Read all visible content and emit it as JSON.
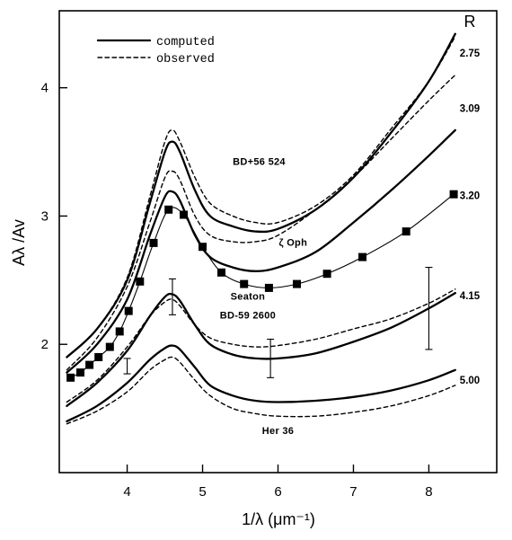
{
  "chart_data": {
    "type": "line",
    "title": "",
    "xlabel": "1/λ (μm⁻¹)",
    "ylabel": "Aλ /Av",
    "xlim": [
      3.1,
      8.9
    ],
    "ylim": [
      1.0,
      4.6
    ],
    "xticks": [
      4,
      5,
      6,
      7,
      8
    ],
    "yticks": [
      2,
      3,
      4
    ],
    "grid": false,
    "legend": {
      "position": "top-left",
      "entries": [
        {
          "label": "computed",
          "style": "solid"
        },
        {
          "label": "observed",
          "style": "dashed"
        }
      ]
    },
    "r_header": "R",
    "series": [
      {
        "R": "2.75",
        "style": "solid",
        "x": [
          3.2,
          3.6,
          4.0,
          4.3,
          4.5,
          4.6,
          4.7,
          4.9,
          5.1,
          5.4,
          5.7,
          6.0,
          6.5,
          7.0,
          7.5,
          8.0,
          8.35
        ],
        "y": [
          1.9,
          2.12,
          2.5,
          3.1,
          3.5,
          3.58,
          3.5,
          3.2,
          3.0,
          2.92,
          2.88,
          2.9,
          3.05,
          3.3,
          3.65,
          4.05,
          4.42
        ]
      },
      {
        "R": "2.75",
        "style": "dashed",
        "x": [
          3.2,
          3.6,
          4.0,
          4.3,
          4.5,
          4.6,
          4.7,
          4.9,
          5.1,
          5.4,
          5.7,
          6.0,
          6.5,
          7.0,
          7.5,
          8.0,
          8.35
        ],
        "y": [
          1.9,
          2.12,
          2.52,
          3.15,
          3.58,
          3.67,
          3.58,
          3.3,
          3.1,
          3.0,
          2.95,
          2.95,
          3.08,
          3.32,
          3.68,
          4.05,
          4.4
        ]
      },
      {
        "R": "3.09",
        "style": "solid",
        "x": [
          3.2,
          3.6,
          4.0,
          4.3,
          4.5,
          4.6,
          4.7,
          4.9,
          5.1,
          5.4,
          5.7,
          6.0,
          6.5,
          7.0,
          7.5,
          8.0,
          8.35
        ],
        "y": [
          1.78,
          2.0,
          2.35,
          2.85,
          3.15,
          3.19,
          3.12,
          2.85,
          2.68,
          2.6,
          2.57,
          2.6,
          2.72,
          2.95,
          3.2,
          3.47,
          3.67
        ]
      },
      {
        "R": "3.09",
        "style": "dashed",
        "x": [
          3.2,
          3.6,
          4.0,
          4.3,
          4.5,
          4.6,
          4.7,
          4.9,
          5.1,
          5.4,
          5.7,
          6.0,
          6.5,
          7.0,
          7.5,
          8.0,
          8.35
        ],
        "y": [
          1.8,
          2.05,
          2.45,
          2.95,
          3.3,
          3.35,
          3.28,
          3.0,
          2.85,
          2.8,
          2.8,
          2.85,
          3.05,
          3.3,
          3.6,
          3.9,
          4.1
        ]
      },
      {
        "R": "4.15",
        "style": "solid",
        "x": [
          3.2,
          3.6,
          4.0,
          4.3,
          4.5,
          4.6,
          4.7,
          4.9,
          5.1,
          5.4,
          5.7,
          6.0,
          6.5,
          7.0,
          7.5,
          8.0,
          8.35
        ],
        "y": [
          1.52,
          1.7,
          1.95,
          2.22,
          2.37,
          2.39,
          2.34,
          2.15,
          2.0,
          1.92,
          1.89,
          1.89,
          1.93,
          2.02,
          2.13,
          2.28,
          2.4
        ]
      },
      {
        "R": "4.15",
        "style": "dashed",
        "x": [
          3.2,
          3.6,
          4.0,
          4.3,
          4.5,
          4.6,
          4.7,
          4.9,
          5.1,
          5.4,
          5.7,
          6.0,
          6.5,
          7.0,
          7.5,
          8.0,
          8.35
        ],
        "y": [
          1.55,
          1.72,
          1.98,
          2.22,
          2.33,
          2.35,
          2.3,
          2.15,
          2.05,
          2.0,
          1.98,
          1.99,
          2.04,
          2.12,
          2.2,
          2.32,
          2.43
        ]
      },
      {
        "R": "5.00",
        "style": "solid",
        "x": [
          3.2,
          3.6,
          4.0,
          4.3,
          4.5,
          4.6,
          4.7,
          4.9,
          5.1,
          5.4,
          5.7,
          6.0,
          6.5,
          7.0,
          7.5,
          8.0,
          8.35
        ],
        "y": [
          1.4,
          1.52,
          1.7,
          1.88,
          1.97,
          1.99,
          1.96,
          1.82,
          1.68,
          1.6,
          1.56,
          1.55,
          1.56,
          1.59,
          1.64,
          1.72,
          1.8
        ]
      },
      {
        "R": "5.00",
        "style": "dashed",
        "x": [
          3.2,
          3.6,
          4.0,
          4.3,
          4.5,
          4.6,
          4.7,
          4.9,
          5.1,
          5.4,
          5.7,
          6.0,
          6.5,
          7.0,
          7.5,
          8.0,
          8.35
        ],
        "y": [
          1.38,
          1.48,
          1.63,
          1.8,
          1.88,
          1.9,
          1.86,
          1.72,
          1.6,
          1.5,
          1.46,
          1.44,
          1.44,
          1.47,
          1.52,
          1.6,
          1.68
        ]
      }
    ],
    "seaton": {
      "label": "Seaton",
      "x": [
        3.25,
        3.38,
        3.5,
        3.62,
        3.77,
        3.9,
        4.02,
        4.17,
        4.35,
        4.55,
        4.75,
        5.0,
        5.25,
        5.55,
        5.88,
        6.25,
        6.65,
        7.12,
        7.7,
        8.33
      ],
      "y": [
        1.74,
        1.78,
        1.84,
        1.9,
        1.98,
        2.1,
        2.26,
        2.49,
        2.79,
        3.05,
        3.01,
        2.76,
        2.56,
        2.47,
        2.44,
        2.47,
        2.55,
        2.68,
        2.88,
        3.17
      ]
    },
    "error_bars": [
      {
        "x": 4.0,
        "ylow": 1.77,
        "yhigh": 1.89
      },
      {
        "x": 4.6,
        "ylow": 2.23,
        "yhigh": 2.51
      },
      {
        "x": 5.9,
        "ylow": 1.74,
        "yhigh": 2.04
      },
      {
        "x": 8.0,
        "ylow": 1.96,
        "yhigh": 2.6
      }
    ],
    "curve_labels": [
      {
        "text": "BD+56 524",
        "x": 5.75,
        "y": 3.4
      },
      {
        "text": "ζ Oph",
        "x": 6.2,
        "y": 2.77
      },
      {
        "text": "Seaton",
        "x": 5.6,
        "y": 2.35
      },
      {
        "text": "BD-59 2600",
        "x": 5.6,
        "y": 2.2
      },
      {
        "text": "Her 36",
        "x": 6.0,
        "y": 1.3
      }
    ],
    "r_values": [
      {
        "text": "2.75",
        "y": 4.27
      },
      {
        "text": "3.09",
        "y": 3.84
      },
      {
        "text": "3.20",
        "y": 3.16
      },
      {
        "text": "4.15",
        "y": 2.38
      },
      {
        "text": "5.00",
        "y": 1.72
      }
    ]
  }
}
